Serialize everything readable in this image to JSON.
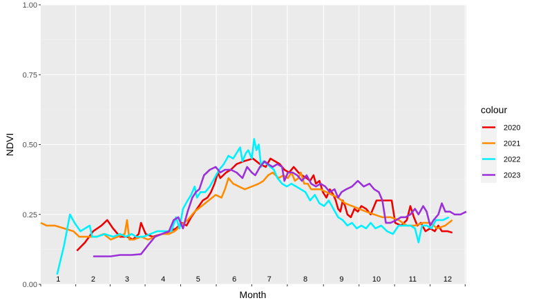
{
  "chart_data": {
    "type": "line",
    "title": "",
    "xlabel": "Month",
    "ylabel": "NDVI",
    "xlim": [
      0,
      365
    ],
    "ylim": [
      0,
      1
    ],
    "y_ticks": [
      {
        "value": 0.0,
        "label": "0.00"
      },
      {
        "value": 0.25,
        "label": "0.25"
      },
      {
        "value": 0.5,
        "label": "0.50"
      },
      {
        "value": 0.75,
        "label": "0.75"
      },
      {
        "value": 1.0,
        "label": "1.00"
      }
    ],
    "month_labels": [
      {
        "label": "1",
        "x": 15
      },
      {
        "label": "2",
        "x": 45
      },
      {
        "label": "3",
        "x": 74
      },
      {
        "label": "4",
        "x": 105
      },
      {
        "label": "5",
        "x": 135
      },
      {
        "label": "6",
        "x": 166
      },
      {
        "label": "7",
        "x": 196
      },
      {
        "label": "8",
        "x": 227
      },
      {
        "label": "9",
        "x": 258
      },
      {
        "label": "10",
        "x": 288
      },
      {
        "label": "11",
        "x": 319
      },
      {
        "label": "12",
        "x": 349
      }
    ],
    "grid": true,
    "legend": {
      "title": "colour",
      "position": "right"
    },
    "series": [
      {
        "name": "2020",
        "color": "#ee0000",
        "points": [
          [
            31,
            0.12
          ],
          [
            38,
            0.15
          ],
          [
            45,
            0.19
          ],
          [
            52,
            0.21
          ],
          [
            57,
            0.23
          ],
          [
            62,
            0.2
          ],
          [
            68,
            0.17
          ],
          [
            74,
            0.17
          ],
          [
            79,
            0.16
          ],
          [
            84,
            0.18
          ],
          [
            86,
            0.22
          ],
          [
            90,
            0.18
          ],
          [
            96,
            0.17
          ],
          [
            104,
            0.18
          ],
          [
            111,
            0.19
          ],
          [
            116,
            0.2
          ],
          [
            121,
            0.22
          ],
          [
            125,
            0.21
          ],
          [
            129,
            0.24
          ],
          [
            134,
            0.27
          ],
          [
            139,
            0.3
          ],
          [
            143,
            0.31
          ],
          [
            146,
            0.33
          ],
          [
            149,
            0.36
          ],
          [
            152,
            0.4
          ],
          [
            154,
            0.38
          ],
          [
            159,
            0.4
          ],
          [
            163,
            0.41
          ],
          [
            168,
            0.43
          ],
          [
            174,
            0.44
          ],
          [
            182,
            0.45
          ],
          [
            188,
            0.43
          ],
          [
            193,
            0.42
          ],
          [
            197,
            0.45
          ],
          [
            201,
            0.44
          ],
          [
            205,
            0.43
          ],
          [
            209,
            0.41
          ],
          [
            213,
            0.4
          ],
          [
            217,
            0.42
          ],
          [
            221,
            0.4
          ],
          [
            224,
            0.39
          ],
          [
            228,
            0.38
          ],
          [
            231,
            0.37
          ],
          [
            234,
            0.39
          ],
          [
            236,
            0.36
          ],
          [
            239,
            0.37
          ],
          [
            242,
            0.33
          ],
          [
            245,
            0.31
          ],
          [
            248,
            0.34
          ],
          [
            251,
            0.32
          ],
          [
            253,
            0.3
          ],
          [
            255,
            0.27
          ],
          [
            257,
            0.26
          ],
          [
            259,
            0.3
          ],
          [
            261,
            0.28
          ],
          [
            263,
            0.25
          ],
          [
            266,
            0.24
          ],
          [
            269,
            0.27
          ],
          [
            272,
            0.26
          ],
          [
            275,
            0.28
          ],
          [
            279,
            0.27
          ],
          [
            283,
            0.25
          ],
          [
            288,
            0.3
          ],
          [
            296,
            0.3
          ],
          [
            301,
            0.3
          ],
          [
            304,
            0.22
          ],
          [
            309,
            0.21
          ],
          [
            314,
            0.23
          ],
          [
            317,
            0.28
          ],
          [
            320,
            0.24
          ],
          [
            323,
            0.21
          ],
          [
            326,
            0.22
          ],
          [
            330,
            0.19
          ],
          [
            334,
            0.2
          ],
          [
            338,
            0.19
          ],
          [
            341,
            0.21
          ],
          [
            344,
            0.19
          ],
          [
            349,
            0.19
          ],
          [
            353,
            0.185
          ]
        ]
      },
      {
        "name": "2021",
        "color": "#ff8c00",
        "points": [
          [
            0,
            0.22
          ],
          [
            5,
            0.21
          ],
          [
            12,
            0.21
          ],
          [
            20,
            0.2
          ],
          [
            28,
            0.19
          ],
          [
            33,
            0.17
          ],
          [
            40,
            0.17
          ],
          [
            48,
            0.17
          ],
          [
            54,
            0.18
          ],
          [
            60,
            0.16
          ],
          [
            66,
            0.17
          ],
          [
            72,
            0.18
          ],
          [
            74,
            0.23
          ],
          [
            76,
            0.16
          ],
          [
            80,
            0.16
          ],
          [
            86,
            0.17
          ],
          [
            92,
            0.16
          ],
          [
            98,
            0.17
          ],
          [
            104,
            0.18
          ],
          [
            110,
            0.18
          ],
          [
            115,
            0.19
          ],
          [
            120,
            0.21
          ],
          [
            126,
            0.23
          ],
          [
            132,
            0.26
          ],
          [
            138,
            0.28
          ],
          [
            144,
            0.3
          ],
          [
            150,
            0.32
          ],
          [
            155,
            0.31
          ],
          [
            158,
            0.34
          ],
          [
            161,
            0.38
          ],
          [
            165,
            0.36
          ],
          [
            170,
            0.35
          ],
          [
            175,
            0.34
          ],
          [
            181,
            0.35
          ],
          [
            187,
            0.36
          ],
          [
            191,
            0.37
          ],
          [
            195,
            0.39
          ],
          [
            199,
            0.4
          ],
          [
            204,
            0.38
          ],
          [
            208,
            0.39
          ],
          [
            212,
            0.38
          ],
          [
            215,
            0.4
          ],
          [
            218,
            0.37
          ],
          [
            221,
            0.38
          ],
          [
            223,
            0.4
          ],
          [
            226,
            0.36
          ],
          [
            229,
            0.36
          ],
          [
            232,
            0.34
          ],
          [
            236,
            0.34
          ],
          [
            240,
            0.34
          ],
          [
            245,
            0.33
          ],
          [
            250,
            0.32
          ],
          [
            255,
            0.31
          ],
          [
            261,
            0.29
          ],
          [
            267,
            0.28
          ],
          [
            273,
            0.27
          ],
          [
            279,
            0.26
          ],
          [
            286,
            0.25
          ],
          [
            293,
            0.24
          ],
          [
            300,
            0.24
          ],
          [
            307,
            0.23
          ],
          [
            314,
            0.21
          ],
          [
            321,
            0.21
          ],
          [
            328,
            0.22
          ],
          [
            334,
            0.22
          ],
          [
            340,
            0.2
          ],
          [
            347,
            0.21
          ],
          [
            353,
            0.23
          ]
        ]
      },
      {
        "name": "2022",
        "color": "#00f0ff",
        "points": [
          [
            14,
            0.035
          ],
          [
            20,
            0.14
          ],
          [
            25,
            0.25
          ],
          [
            29,
            0.22
          ],
          [
            34,
            0.19
          ],
          [
            38,
            0.2
          ],
          [
            42,
            0.21
          ],
          [
            44,
            0.17
          ],
          [
            48,
            0.17
          ],
          [
            55,
            0.18
          ],
          [
            62,
            0.17
          ],
          [
            68,
            0.18
          ],
          [
            73,
            0.17
          ],
          [
            78,
            0.18
          ],
          [
            82,
            0.17
          ],
          [
            88,
            0.17
          ],
          [
            94,
            0.18
          ],
          [
            100,
            0.19
          ],
          [
            106,
            0.19
          ],
          [
            112,
            0.19
          ],
          [
            116,
            0.24
          ],
          [
            119,
            0.2
          ],
          [
            122,
            0.27
          ],
          [
            126,
            0.3
          ],
          [
            129,
            0.32
          ],
          [
            132,
            0.35
          ],
          [
            134,
            0.31
          ],
          [
            137,
            0.33
          ],
          [
            141,
            0.33
          ],
          [
            145,
            0.35
          ],
          [
            149,
            0.38
          ],
          [
            153,
            0.41
          ],
          [
            157,
            0.43
          ],
          [
            161,
            0.46
          ],
          [
            165,
            0.45
          ],
          [
            168,
            0.47
          ],
          [
            171,
            0.49
          ],
          [
            173,
            0.44
          ],
          [
            176,
            0.47
          ],
          [
            178,
            0.48
          ],
          [
            181,
            0.45
          ],
          [
            183,
            0.52
          ],
          [
            185,
            0.48
          ],
          [
            187,
            0.5
          ],
          [
            189,
            0.42
          ],
          [
            191,
            0.44
          ],
          [
            194,
            0.43
          ],
          [
            197,
            0.42
          ],
          [
            200,
            0.41
          ],
          [
            203,
            0.38
          ],
          [
            207,
            0.36
          ],
          [
            211,
            0.35
          ],
          [
            215,
            0.36
          ],
          [
            219,
            0.35
          ],
          [
            223,
            0.34
          ],
          [
            227,
            0.33
          ],
          [
            231,
            0.3
          ],
          [
            235,
            0.32
          ],
          [
            239,
            0.29
          ],
          [
            243,
            0.28
          ],
          [
            247,
            0.3
          ],
          [
            251,
            0.27
          ],
          [
            255,
            0.24
          ],
          [
            259,
            0.23
          ],
          [
            263,
            0.21
          ],
          [
            267,
            0.22
          ],
          [
            271,
            0.2
          ],
          [
            275,
            0.21
          ],
          [
            279,
            0.2
          ],
          [
            283,
            0.22
          ],
          [
            287,
            0.2
          ],
          [
            292,
            0.21
          ],
          [
            297,
            0.19
          ],
          [
            302,
            0.18
          ],
          [
            307,
            0.21
          ],
          [
            312,
            0.21
          ],
          [
            317,
            0.21
          ],
          [
            321,
            0.2
          ],
          [
            324,
            0.15
          ],
          [
            327,
            0.21
          ],
          [
            331,
            0.21
          ],
          [
            335,
            0.2
          ],
          [
            339,
            0.23
          ],
          [
            345,
            0.23
          ],
          [
            350,
            0.24
          ]
        ]
      },
      {
        "name": "2023",
        "color": "#9b30d9",
        "points": [
          [
            45,
            0.1
          ],
          [
            52,
            0.1
          ],
          [
            60,
            0.1
          ],
          [
            68,
            0.105
          ],
          [
            78,
            0.105
          ],
          [
            86,
            0.108
          ],
          [
            92,
            0.14
          ],
          [
            98,
            0.17
          ],
          [
            104,
            0.18
          ],
          [
            110,
            0.19
          ],
          [
            114,
            0.23
          ],
          [
            118,
            0.24
          ],
          [
            122,
            0.2
          ],
          [
            126,
            0.26
          ],
          [
            130,
            0.31
          ],
          [
            133,
            0.33
          ],
          [
            136,
            0.34
          ],
          [
            140,
            0.39
          ],
          [
            145,
            0.41
          ],
          [
            150,
            0.42
          ],
          [
            154,
            0.4
          ],
          [
            158,
            0.41
          ],
          [
            163,
            0.41
          ],
          [
            168,
            0.4
          ],
          [
            173,
            0.38
          ],
          [
            177,
            0.42
          ],
          [
            181,
            0.4
          ],
          [
            184,
            0.39
          ],
          [
            188,
            0.42
          ],
          [
            192,
            0.44
          ],
          [
            195,
            0.43
          ],
          [
            199,
            0.42
          ],
          [
            203,
            0.43
          ],
          [
            207,
            0.42
          ],
          [
            209,
            0.37
          ],
          [
            212,
            0.4
          ],
          [
            216,
            0.4
          ],
          [
            220,
            0.39
          ],
          [
            224,
            0.37
          ],
          [
            228,
            0.39
          ],
          [
            232,
            0.36
          ],
          [
            236,
            0.35
          ],
          [
            240,
            0.36
          ],
          [
            244,
            0.35
          ],
          [
            248,
            0.33
          ],
          [
            252,
            0.34
          ],
          [
            255,
            0.31
          ],
          [
            258,
            0.33
          ],
          [
            262,
            0.34
          ],
          [
            267,
            0.35
          ],
          [
            272,
            0.37
          ],
          [
            277,
            0.35
          ],
          [
            282,
            0.36
          ],
          [
            286,
            0.34
          ],
          [
            290,
            0.33
          ],
          [
            293,
            0.3
          ],
          [
            296,
            0.22
          ],
          [
            300,
            0.22
          ],
          [
            305,
            0.23
          ],
          [
            309,
            0.24
          ],
          [
            313,
            0.24
          ],
          [
            317,
            0.25
          ],
          [
            321,
            0.27
          ],
          [
            324,
            0.25
          ],
          [
            328,
            0.28
          ],
          [
            331,
            0.26
          ],
          [
            334,
            0.21
          ],
          [
            337,
            0.23
          ],
          [
            341,
            0.25
          ],
          [
            344,
            0.29
          ],
          [
            347,
            0.26
          ],
          [
            351,
            0.26
          ],
          [
            355,
            0.25
          ],
          [
            360,
            0.25
          ],
          [
            365,
            0.26
          ]
        ]
      }
    ]
  }
}
